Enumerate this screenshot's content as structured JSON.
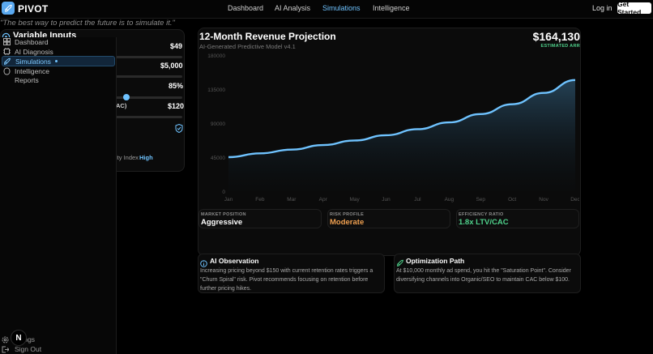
{
  "app": {
    "name": "PIVOT",
    "tagline": "\"The best way to predict the future is to simulate it.\""
  },
  "nav": {
    "items": [
      "Dashboard",
      "AI Analysis",
      "Simulations",
      "Intelligence"
    ],
    "active": "Simulations",
    "login": "Log in",
    "get_started": "Get Started"
  },
  "sidebar": {
    "items": [
      "Dashboard",
      "AI Diagnosis",
      "Simulations",
      "Intelligence",
      "Reports"
    ],
    "active": "Simulations",
    "bottom": [
      "ettings",
      "Sign Out"
    ]
  },
  "inputs": {
    "title": "Variable Inputs",
    "price": "$49",
    "ad_spend": "$5,000",
    "retention": "85%",
    "cac_label": "AC)",
    "cac": "$120",
    "index_label": "ity Index",
    "index_value": "High"
  },
  "chart": {
    "title": "12-Month Revenue Projection",
    "subtitle": "AI-Generated Predictive Model v4.1",
    "arr": "$164,130",
    "arr_label": "ESTIMATED ARR"
  },
  "chart_data": {
    "type": "area",
    "categories": [
      "Jan",
      "Feb",
      "Mar",
      "Apr",
      "May",
      "Jun",
      "Jul",
      "Aug",
      "Sep",
      "Oct",
      "Nov",
      "Dec"
    ],
    "values": [
      45000,
      50000,
      55000,
      61000,
      67000,
      74000,
      82000,
      91000,
      102000,
      115000,
      130000,
      147000
    ],
    "yticks": [
      "0",
      "45000",
      "90000",
      "135000",
      "180000"
    ],
    "ylim": [
      0,
      180000
    ],
    "grid": false,
    "color": "#6fc3ff"
  },
  "metrics": [
    {
      "label": "MARKET POSITION",
      "value": "Aggressive",
      "color": "#ffffff"
    },
    {
      "label": "RISK PROFILE",
      "value": "Moderate",
      "color": "#f0a050"
    },
    {
      "label": "EFFICIENCY RATIO",
      "value": "1.8x LTV/CAC",
      "color": "#4fd18b"
    }
  ],
  "cards": {
    "observation": {
      "title": "AI Observation",
      "lines": [
        "Increasing pricing beyond $150 with current retention rates triggers a",
        "\"Churn Spiral\" risk. Pivot recommends focusing on retention before",
        "further pricing hikes."
      ]
    },
    "optimization": {
      "title": "Optimization Path",
      "lines": [
        "At $10,000 monthly ad spend, you hit the \"Saturation Point\". Consider",
        "diversifying channels into Organic/SEO to maintain CAC below $100."
      ]
    }
  },
  "badge": "N"
}
